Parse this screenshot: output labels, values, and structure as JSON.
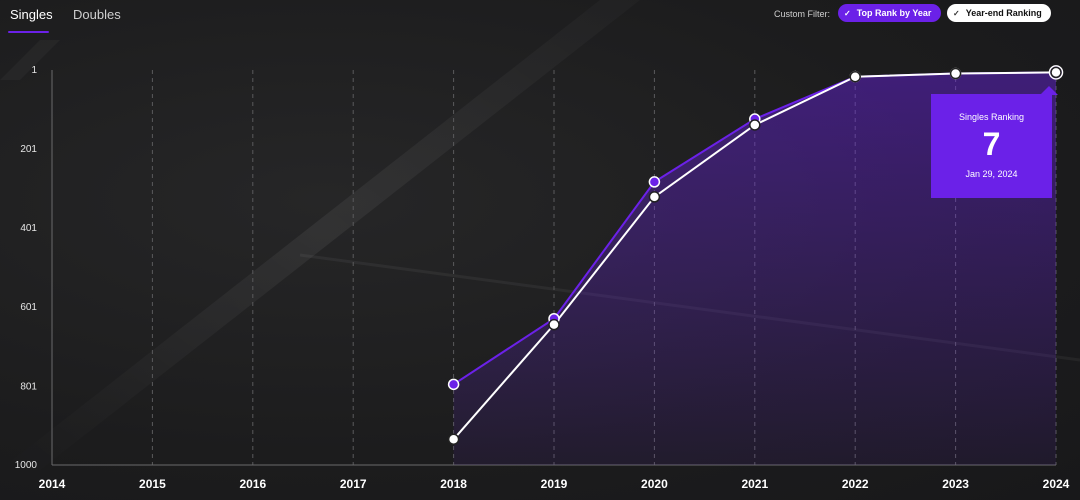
{
  "tabs": [
    {
      "label": "Singles",
      "active": true
    },
    {
      "label": "Doubles",
      "active": false
    }
  ],
  "filter": {
    "label": "Custom Filter:",
    "options": [
      {
        "label": "Top Rank by Year",
        "selected": true,
        "color": "#6b21e8"
      },
      {
        "label": "Year-end Ranking",
        "selected": true,
        "color": "#ffffff"
      }
    ]
  },
  "tooltip": {
    "title": "Singles Ranking",
    "value": "7",
    "date": "Jan 29, 2024"
  },
  "chart_data": {
    "type": "line",
    "x": [
      2014,
      2015,
      2016,
      2017,
      2018,
      2019,
      2020,
      2021,
      2022,
      2023,
      2024
    ],
    "x_tick_labels": [
      "2014",
      "2015",
      "2016",
      "2017",
      "2018",
      "2019",
      "2020",
      "2021",
      "2022",
      "2023",
      "2024"
    ],
    "y_tick_labels": [
      "1",
      "201",
      "401",
      "601",
      "801",
      "1000"
    ],
    "y_ticks": [
      1,
      201,
      401,
      601,
      801,
      1000
    ],
    "ylim": [
      1,
      1000
    ],
    "y_inverted": true,
    "grid": "vertical dashed",
    "series": [
      {
        "key": "top-rank",
        "color": "#6b21e8",
        "fill_area": true,
        "x": [
          2018,
          2019,
          2020,
          2021,
          2022,
          2023,
          2024
        ],
        "values": [
          796,
          630,
          284,
          125,
          18,
          10,
          7
        ]
      },
      {
        "key": "year-end",
        "color": "#ffffff",
        "x": [
          2018,
          2019,
          2020,
          2021,
          2022,
          2023,
          2024
        ],
        "values": [
          935,
          645,
          322,
          140,
          18,
          10,
          7
        ]
      }
    ]
  }
}
